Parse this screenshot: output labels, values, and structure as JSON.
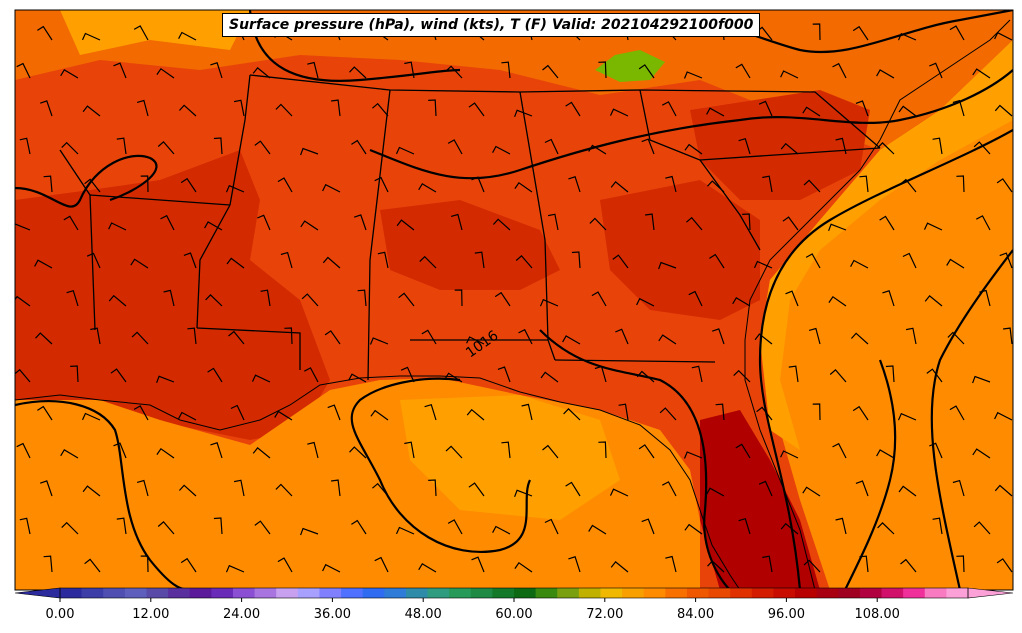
{
  "title": "Surface pressure (hPa), wind (kts), T (F) Valid: 202104292100f000",
  "map": {
    "variables": [
      "surface pressure",
      "wind barbs",
      "temperature"
    ],
    "isobar_label": "1016",
    "colors": {
      "land_dark": "#d42a00",
      "land_mid": "#e8440a",
      "land_light": "#f26a00",
      "water": "#ff8c00",
      "water_light": "#ffa000",
      "mountain_green": "#7ab800",
      "hottest": "#b00000"
    }
  },
  "colorbar": {
    "min": 0,
    "max": 120,
    "step": 3,
    "tick_labels": [
      "0.00",
      "12.00",
      "24.00",
      "36.00",
      "48.00",
      "60.00",
      "72.00",
      "84.00",
      "96.00",
      "108.00"
    ],
    "colors": [
      "#2b2b9e",
      "#3d3da8",
      "#4f4fb2",
      "#5e5ebc",
      "#5a4aa8",
      "#5a2f9e",
      "#5a1a9a",
      "#6a2bb8",
      "#8a4fd2",
      "#a874e0",
      "#c8a0f0",
      "#a8a0ff",
      "#8080ff",
      "#5070ff",
      "#2f6cf2",
      "#2f7cd8",
      "#2f8ca8",
      "#2f9c80",
      "#279a5a",
      "#1e8a44",
      "#147a2a",
      "#0e6a12",
      "#3a8a10",
      "#7aa010",
      "#c0b000",
      "#f0b800",
      "#f8a000",
      "#ff8c00",
      "#f87000",
      "#f05800",
      "#e84800",
      "#e03000",
      "#d41c00",
      "#c80c00",
      "#b80000",
      "#a80010",
      "#a00020",
      "#b00040",
      "#d0106a",
      "#f0309a",
      "#f87ac0",
      "#fca0d8"
    ]
  }
}
